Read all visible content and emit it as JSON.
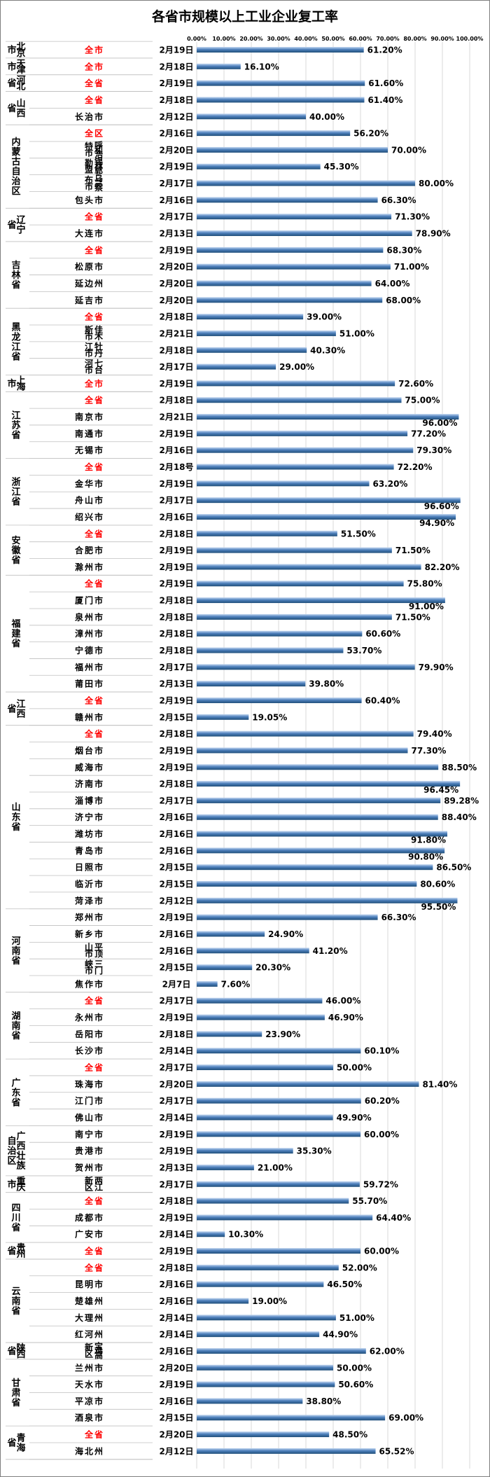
{
  "chart_data": {
    "type": "bar",
    "orientation": "horizontal",
    "title": "各省市规模以上工业企业复工率",
    "x_ticks": [
      "0.00%",
      "10.00%",
      "20.00%",
      "30.00%",
      "40.00%",
      "50.00%",
      "60.00%",
      "70.00%",
      "80.00%",
      "90.00%",
      "100.00%"
    ],
    "xlim": [
      0,
      100
    ],
    "grid": true,
    "groups": [
      {
        "province": "北京市",
        "rows": [
          {
            "city": "全市",
            "date": "2月19日",
            "value": 61.2,
            "label": "61.20%"
          }
        ]
      },
      {
        "province": "天津市",
        "rows": [
          {
            "city": "全市",
            "date": "2月18日",
            "value": 16.1,
            "label": "16.10%"
          }
        ]
      },
      {
        "province": "河北省",
        "rows": [
          {
            "city": "全省",
            "date": "2月19日",
            "value": 61.6,
            "label": "61.60%"
          }
        ]
      },
      {
        "province": "山西省",
        "rows": [
          {
            "city": "全省",
            "date": "2月18日",
            "value": 61.4,
            "label": "61.40%"
          },
          {
            "city": "长治市",
            "date": "2月12日",
            "value": 40.0,
            "label": "40.00%"
          }
        ]
      },
      {
        "province": "内蒙古自治区",
        "rows": [
          {
            "city": "全区",
            "date": "2月16日",
            "value": 56.2,
            "label": "56.20%"
          },
          {
            "city": "呼和浩特市",
            "date": "2月20日",
            "value": 70.0,
            "label": "70.00%"
          },
          {
            "city": "锡林郭勒盟",
            "date": "2月19日",
            "value": 45.3,
            "label": "45.30%"
          },
          {
            "city": "乌兰察布市",
            "date": "2月17日",
            "value": 80.0,
            "label": "80.00%"
          },
          {
            "city": "包头市",
            "date": "2月16日",
            "value": 66.3,
            "label": "66.30%"
          }
        ]
      },
      {
        "province": "辽宁省",
        "rows": [
          {
            "city": "全省",
            "date": "2月17日",
            "value": 71.3,
            "label": "71.30%"
          },
          {
            "city": "大连市",
            "date": "2月13日",
            "value": 78.9,
            "label": "78.90%"
          }
        ]
      },
      {
        "province": "吉林省",
        "rows": [
          {
            "city": "全省",
            "date": "2月19日",
            "value": 68.3,
            "label": "68.30%"
          },
          {
            "city": "松原市",
            "date": "2月20日",
            "value": 71.0,
            "label": "71.00%"
          },
          {
            "city": "延边州",
            "date": "2月20日",
            "value": 64.0,
            "label": "64.00%"
          },
          {
            "city": "延吉市",
            "date": "2月20日",
            "value": 68.0,
            "label": "68.00%"
          }
        ]
      },
      {
        "province": "黑龙江省",
        "rows": [
          {
            "city": "全省",
            "date": "2月18日",
            "value": 39.0,
            "label": "39.00%"
          },
          {
            "city": "佳木斯市",
            "date": "2月21日",
            "value": 51.0,
            "label": "51.00%"
          },
          {
            "city": "牡丹江市",
            "date": "2月18日",
            "value": 40.3,
            "label": "40.30%"
          },
          {
            "city": "七台河市",
            "date": "2月17日",
            "value": 29.0,
            "label": "29.00%"
          }
        ]
      },
      {
        "province": "上海市",
        "rows": [
          {
            "city": "全市",
            "date": "2月19日",
            "value": 72.6,
            "label": "72.60%"
          }
        ]
      },
      {
        "province": "江苏省",
        "rows": [
          {
            "city": "全省",
            "date": "2月18日",
            "value": 75.0,
            "label": "75.00%"
          },
          {
            "city": "南京市",
            "date": "2月21日",
            "value": 96.0,
            "label": "96.00%"
          },
          {
            "city": "南通市",
            "date": "2月19日",
            "value": 77.2,
            "label": "77.20%"
          },
          {
            "city": "无锡市",
            "date": "2月16日",
            "value": 79.3,
            "label": "79.30%"
          }
        ]
      },
      {
        "province": "浙江省",
        "rows": [
          {
            "city": "全省",
            "date": "2月18号",
            "value": 72.2,
            "label": "72.20%"
          },
          {
            "city": "金华市",
            "date": "2月19日",
            "value": 63.2,
            "label": "63.20%"
          },
          {
            "city": "舟山市",
            "date": "2月17日",
            "value": 96.6,
            "label": "96.60%"
          },
          {
            "city": "绍兴市",
            "date": "2月16日",
            "value": 94.9,
            "label": "94.90%"
          }
        ]
      },
      {
        "province": "安徽省",
        "rows": [
          {
            "city": "全省",
            "date": "2月18日",
            "value": 51.5,
            "label": "51.50%"
          },
          {
            "city": "合肥市",
            "date": "2月19日",
            "value": 71.5,
            "label": "71.50%"
          },
          {
            "city": "滁州市",
            "date": "2月19日",
            "value": 82.2,
            "label": "82.20%"
          }
        ]
      },
      {
        "province": "福建省",
        "rows": [
          {
            "city": "全省",
            "date": "2月19日",
            "value": 75.8,
            "label": "75.80%"
          },
          {
            "city": "厦门市",
            "date": "2月18日",
            "value": 91.0,
            "label": "91.00%"
          },
          {
            "city": "泉州市",
            "date": "2月18日",
            "value": 71.5,
            "label": "71.50%"
          },
          {
            "city": "漳州市",
            "date": "2月18日",
            "value": 60.6,
            "label": "60.60%"
          },
          {
            "city": "宁德市",
            "date": "2月18日",
            "value": 53.7,
            "label": "53.70%"
          },
          {
            "city": "福州市",
            "date": "2月17日",
            "value": 79.9,
            "label": "79.90%"
          },
          {
            "city": "莆田市",
            "date": "2月13日",
            "value": 39.8,
            "label": "39.80%"
          }
        ]
      },
      {
        "province": "江西省",
        "rows": [
          {
            "city": "全省",
            "date": "2月19日",
            "value": 60.4,
            "label": "60.40%"
          },
          {
            "city": "赣州市",
            "date": "2月15日",
            "value": 19.05,
            "label": "19.05%"
          }
        ]
      },
      {
        "province": "山东省",
        "rows": [
          {
            "city": "全省",
            "date": "2月18日",
            "value": 79.4,
            "label": "79.40%"
          },
          {
            "city": "烟台市",
            "date": "2月19日",
            "value": 77.3,
            "label": "77.30%"
          },
          {
            "city": "威海市",
            "date": "2月19日",
            "value": 88.5,
            "label": "88.50%"
          },
          {
            "city": "济南市",
            "date": "2月18日",
            "value": 96.45,
            "label": "96.45%"
          },
          {
            "city": "淄博市",
            "date": "2月17日",
            "value": 89.28,
            "label": "89.28%"
          },
          {
            "city": "济宁市",
            "date": "2月16日",
            "value": 88.4,
            "label": "88.40%"
          },
          {
            "city": "潍坊市",
            "date": "2月16日",
            "value": 91.8,
            "label": "91.80%"
          },
          {
            "city": "青岛市",
            "date": "2月16日",
            "value": 90.8,
            "label": "90.80%"
          },
          {
            "city": "日照市",
            "date": "2月15日",
            "value": 86.5,
            "label": "86.50%"
          },
          {
            "city": "临沂市",
            "date": "2月15日",
            "value": 80.6,
            "label": "80.60%"
          },
          {
            "city": "菏泽市",
            "date": "2月12日",
            "value": 95.5,
            "label": "95.50%"
          }
        ]
      },
      {
        "province": "河南省",
        "rows": [
          {
            "city": "郑州市",
            "date": "2月19日",
            "value": 66.3,
            "label": "66.30%"
          },
          {
            "city": "新乡市",
            "date": "2月16日",
            "value": 24.9,
            "label": "24.90%"
          },
          {
            "city": "平顶山市",
            "date": "2月16日",
            "value": 41.2,
            "label": "41.20%"
          },
          {
            "city": "三门峡市",
            "date": "2月15日",
            "value": 20.3,
            "label": "20.30%"
          },
          {
            "city": "焦作市",
            "date": "2月7日",
            "value": 7.6,
            "label": "7.60%"
          }
        ]
      },
      {
        "province": "湖南省",
        "rows": [
          {
            "city": "全省",
            "date": "2月17日",
            "value": 46.0,
            "label": "46.00%"
          },
          {
            "city": "永州市",
            "date": "2月19日",
            "value": 46.9,
            "label": "46.90%"
          },
          {
            "city": "岳阳市",
            "date": "2月18日",
            "value": 23.9,
            "label": "23.90%"
          },
          {
            "city": "长沙市",
            "date": "2月14日",
            "value": 60.1,
            "label": "60.10%"
          }
        ]
      },
      {
        "province": "广东省",
        "rows": [
          {
            "city": "全省",
            "date": "2月17日",
            "value": 50.0,
            "label": "50.00%"
          },
          {
            "city": "珠海市",
            "date": "2月20日",
            "value": 81.4,
            "label": "81.40%"
          },
          {
            "city": "江门市",
            "date": "2月17日",
            "value": 60.2,
            "label": "60.20%"
          },
          {
            "city": "佛山市",
            "date": "2月14日",
            "value": 49.9,
            "label": "49.90%"
          }
        ]
      },
      {
        "province": "广西壮族自治区",
        "rows": [
          {
            "city": "南宁市",
            "date": "2月19日",
            "value": 60.0,
            "label": "60.00%"
          },
          {
            "city": "贵港市",
            "date": "2月19日",
            "value": 35.3,
            "label": "35.30%"
          },
          {
            "city": "贺州市",
            "date": "2月13日",
            "value": 21.0,
            "label": "21.00%"
          }
        ]
      },
      {
        "province": "重庆市",
        "rows": [
          {
            "city": "两江新区",
            "date": "2月17日",
            "value": 59.72,
            "label": "59.72%"
          }
        ]
      },
      {
        "province": "四川省",
        "rows": [
          {
            "city": "全省",
            "date": "2月18日",
            "value": 55.7,
            "label": "55.70%"
          },
          {
            "city": "成都市",
            "date": "2月19日",
            "value": 64.4,
            "label": "64.40%"
          },
          {
            "city": "广安市",
            "date": "2月14日",
            "value": 10.3,
            "label": "10.30%"
          }
        ]
      },
      {
        "province": "贵州省",
        "rows": [
          {
            "city": "全省",
            "date": "2月19日",
            "value": 60.0,
            "label": "60.00%"
          }
        ]
      },
      {
        "province": "云南省",
        "rows": [
          {
            "city": "全省",
            "date": "2月18日",
            "value": 52.0,
            "label": "52.00%"
          },
          {
            "city": "昆明市",
            "date": "2月16日",
            "value": 46.5,
            "label": "46.50%"
          },
          {
            "city": "楚雄州",
            "date": "2月16日",
            "value": 19.0,
            "label": "19.00%"
          },
          {
            "city": "大理州",
            "date": "2月14日",
            "value": 51.0,
            "label": "51.00%"
          },
          {
            "city": "红河州",
            "date": "2月14日",
            "value": 44.9,
            "label": "44.90%"
          }
        ]
      },
      {
        "province": "陕西省",
        "rows": [
          {
            "city": "宝鸡高新区",
            "date": "2月16日",
            "value": 62.0,
            "label": "62.00%"
          }
        ]
      },
      {
        "province": "甘肃省",
        "rows": [
          {
            "city": "兰州市",
            "date": "2月20日",
            "value": 50.0,
            "label": "50.00%"
          },
          {
            "city": "天水市",
            "date": "2月19日",
            "value": 50.6,
            "label": "50.60%"
          },
          {
            "city": "平凉市",
            "date": "2月16日",
            "value": 38.8,
            "label": "38.80%"
          },
          {
            "city": "酒泉市",
            "date": "2月15日",
            "value": 69.0,
            "label": "69.00%"
          }
        ]
      },
      {
        "province": "青海省",
        "rows": [
          {
            "city": "全省",
            "date": "2月20日",
            "value": 48.5,
            "label": "48.50%"
          },
          {
            "city": "海北州",
            "date": "2月12日",
            "value": 65.52,
            "label": "65.52%"
          }
        ]
      }
    ]
  },
  "colors": {
    "bar_dark": "#1f4e79",
    "bar_mid": "#4f81bd",
    "bar_light": "#c6d9f1",
    "highlight_text": "#ff0000"
  }
}
